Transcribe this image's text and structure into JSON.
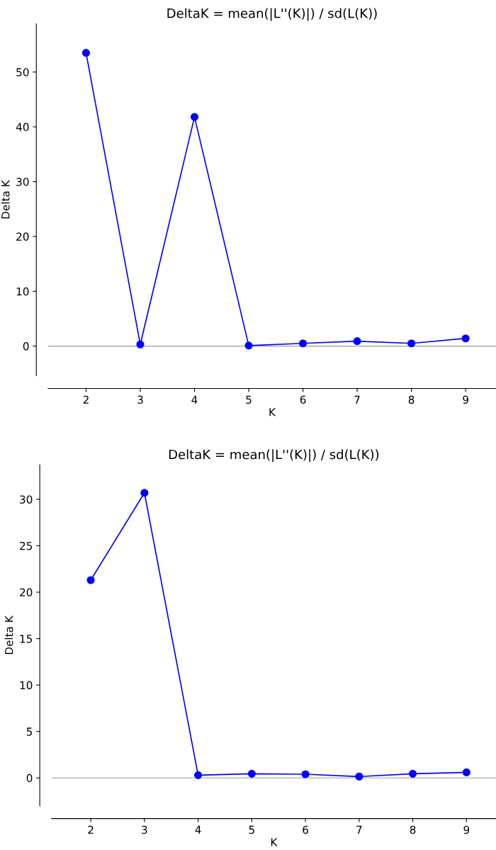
{
  "chart_data": [
    {
      "type": "line",
      "title": "DeltaK = mean(|L''(K)|) / sd(L(K))",
      "xlabel": "K",
      "ylabel": "Delta K",
      "x": [
        2,
        3,
        4,
        5,
        6,
        7,
        8,
        9
      ],
      "series": [
        {
          "color": "#0000ff",
          "values": [
            53.5,
            0.3,
            41.8,
            0.1,
            0.5,
            0.9,
            0.5,
            1.4
          ]
        }
      ],
      "marker": "circle",
      "xlim": [
        1.3,
        9.56
      ],
      "xticks": [
        2,
        3,
        4,
        5,
        6,
        7,
        8,
        9
      ],
      "ylim": [
        -5.4,
        58.8
      ],
      "yticks": [
        0,
        10,
        20,
        30,
        40,
        50
      ],
      "ref_lines": [
        {
          "axis": "y",
          "value": 0,
          "color": "#a0a0a0"
        }
      ]
    },
    {
      "type": "line",
      "title": "DeltaK = mean(|L''(K)|) / sd(L(K))",
      "xlabel": "K",
      "ylabel": "Delta K",
      "x": [
        2,
        3,
        4,
        5,
        6,
        7,
        8,
        9
      ],
      "series": [
        {
          "color": "#0000ff",
          "values": [
            21.3,
            30.7,
            0.3,
            0.45,
            0.4,
            0.15,
            0.45,
            0.6
          ]
        }
      ],
      "marker": "circle",
      "xlim": [
        1.27,
        9.55
      ],
      "xticks": [
        2,
        3,
        4,
        5,
        6,
        7,
        8,
        9
      ],
      "ylim": [
        -3.0,
        33.7
      ],
      "yticks": [
        0,
        5,
        10,
        15,
        20,
        25,
        30
      ],
      "ref_lines": [
        {
          "axis": "y",
          "value": 0,
          "color": "#a0a0a0"
        }
      ]
    }
  ]
}
